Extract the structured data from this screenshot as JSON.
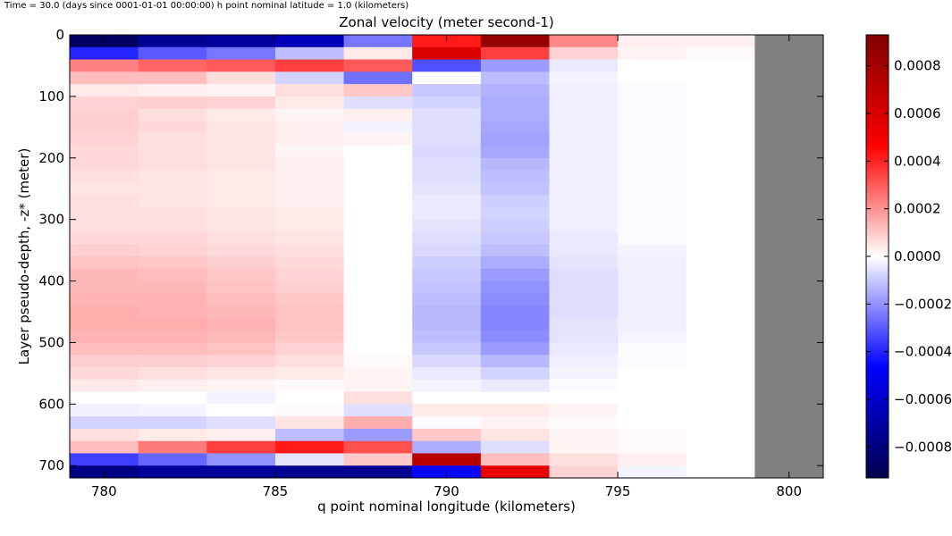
{
  "suptitle": "Time = 30.0 (days since 0001-01-01 00:00:00)   h point nominal latitude = 1.0 (kilometers)",
  "chart_data": {
    "type": "heatmap",
    "title": "Zonal velocity (meter  second-1)",
    "xlabel": "q point nominal longitude (kilometers)",
    "ylabel": "Layer pseudo-depth, -z* (meter)",
    "xlim": [
      779,
      801
    ],
    "ylim": [
      720,
      0
    ],
    "x_ticks": [
      780,
      785,
      790,
      795,
      800
    ],
    "y_ticks": [
      0,
      100,
      200,
      300,
      400,
      500,
      600,
      700
    ],
    "colormap": "seismic",
    "clim": [
      -0.00093,
      0.00093
    ],
    "colorbar_ticks": [
      0.0008,
      0.0006,
      0.0004,
      0.0002,
      0.0,
      -0.0002,
      -0.0004,
      -0.0006,
      -0.0008
    ],
    "colorbar_tick_labels": [
      "0.0008",
      "0.0006",
      "0.0004",
      "0.0002",
      "0.0000",
      "−0.0002",
      "−0.0004",
      "−0.0006",
      "−0.0008"
    ],
    "masked_color": "#808080",
    "x_edges": [
      779,
      781,
      783,
      785,
      787,
      789,
      791,
      793,
      795,
      797,
      799,
      801
    ],
    "y_edges": [
      0,
      20,
      40,
      60,
      80,
      100,
      120,
      140,
      160,
      180,
      200,
      220,
      240,
      260,
      280,
      300,
      320,
      340,
      360,
      380,
      400,
      420,
      440,
      460,
      480,
      500,
      520,
      540,
      560,
      580,
      600,
      620,
      640,
      660,
      680,
      700,
      720
    ],
    "values": [
      [
        -0.00088,
        -0.00075,
        -0.00072,
        -0.00065,
        -0.00025,
        0.00042,
        0.00085,
        0.00022,
        3e-05,
        3e-05,
        null
      ],
      [
        -0.0004,
        -0.0003,
        -0.00025,
        -0.00012,
        4e-05,
        0.0006,
        0.00035,
        8e-05,
        2e-05,
        1e-05,
        null
      ],
      [
        0.00023,
        0.00028,
        0.0003,
        0.00035,
        0.0003,
        -0.00032,
        -0.00018,
        -4e-05,
        0.0,
        0.0,
        null
      ],
      [
        0.00012,
        0.00012,
        6e-05,
        -8e-05,
        -0.00026,
        0.0,
        -0.00012,
        -2e-05,
        0.0,
        0.0,
        null
      ],
      [
        4e-05,
        3e-05,
        2e-05,
        6e-05,
        0.0001,
        -0.0001,
        -0.00014,
        -3e-05,
        -1e-05,
        0.0,
        null
      ],
      [
        8e-05,
        9e-05,
        8e-05,
        4e-05,
        -6e-05,
        -8e-05,
        -0.00015,
        -3e-05,
        -1e-05,
        0.0,
        null
      ],
      [
        9e-05,
        6e-05,
        4e-05,
        2e-05,
        3e-05,
        -6e-05,
        -0.00015,
        -3e-05,
        -1e-05,
        0.0,
        null
      ],
      [
        9e-05,
        7e-05,
        5e-05,
        3e-05,
        -2e-05,
        -6e-05,
        -0.00016,
        -3e-05,
        -1e-05,
        0.0,
        null
      ],
      [
        8e-05,
        6e-05,
        5e-05,
        3e-05,
        2e-05,
        -6e-05,
        -0.00017,
        -3e-05,
        -1e-05,
        0.0,
        null
      ],
      [
        7e-05,
        6e-05,
        5e-05,
        2e-05,
        0.0,
        -7e-05,
        -0.00016,
        -3e-05,
        -1e-05,
        0.0,
        null
      ],
      [
        7e-05,
        6e-05,
        5e-05,
        3e-05,
        0.0,
        -6e-05,
        -0.00013,
        -3e-05,
        -1e-05,
        0.0,
        null
      ],
      [
        6e-05,
        5e-05,
        4e-05,
        3e-05,
        0.0,
        -6e-05,
        -0.00012,
        -3e-05,
        -1e-05,
        0.0,
        null
      ],
      [
        5e-05,
        5e-05,
        4e-05,
        3e-05,
        0.0,
        -5e-05,
        -0.00011,
        -3e-05,
        -1e-05,
        0.0,
        null
      ],
      [
        6e-05,
        5e-05,
        4e-05,
        3e-05,
        0.0,
        -4e-05,
        -9e-05,
        -3e-05,
        -1e-05,
        0.0,
        null
      ],
      [
        6e-05,
        6e-05,
        5e-05,
        4e-05,
        0.0,
        -4e-05,
        -8e-05,
        -3e-05,
        -1e-05,
        0.0,
        null
      ],
      [
        6e-05,
        6e-05,
        5e-05,
        4e-05,
        0.0,
        -5e-05,
        -9e-05,
        -3e-05,
        -1e-05,
        0.0,
        null
      ],
      [
        7e-05,
        7e-05,
        6e-05,
        5e-05,
        0.0,
        -6e-05,
        -0.0001,
        -4e-05,
        -1e-05,
        0.0,
        null
      ],
      [
        9e-05,
        8e-05,
        7e-05,
        6e-05,
        0.0,
        -7e-05,
        -0.00012,
        -4e-05,
        -2e-05,
        0.0,
        null
      ],
      [
        0.00011,
        0.0001,
        9e-05,
        7e-05,
        0.0,
        -9e-05,
        -0.00015,
        -5e-05,
        -3e-05,
        0.0,
        null
      ],
      [
        0.00013,
        0.00012,
        0.0001,
        8e-05,
        0.0,
        -0.0001,
        -0.00018,
        -6e-05,
        -3e-05,
        0.0,
        null
      ],
      [
        0.00013,
        0.00013,
        0.00011,
        9e-05,
        0.0,
        -0.00011,
        -0.0002,
        -6e-05,
        -3e-05,
        0.0,
        null
      ],
      [
        0.00014,
        0.00014,
        0.00012,
        0.0001,
        0.0,
        -0.00012,
        -0.00021,
        -6e-05,
        -3e-05,
        0.0,
        null
      ],
      [
        0.00015,
        0.00014,
        0.00013,
        0.00011,
        0.0,
        -0.00013,
        -0.00022,
        -6e-05,
        -3e-05,
        0.0,
        null
      ],
      [
        0.00015,
        0.00015,
        0.00014,
        0.00011,
        0.0,
        -0.00013,
        -0.00022,
        -5e-05,
        -3e-05,
        0.0,
        null
      ],
      [
        0.00014,
        0.00014,
        0.00013,
        0.0001,
        0.0,
        -0.00012,
        -0.00021,
        -5e-05,
        -2e-05,
        0.0,
        null
      ],
      [
        0.00012,
        0.00012,
        0.00011,
        8e-05,
        0.0,
        -0.0001,
        -0.00018,
        -4e-05,
        -1e-05,
        0.0,
        null
      ],
      [
        9e-05,
        9e-05,
        8e-05,
        6e-05,
        1e-05,
        -7e-05,
        -0.00013,
        -3e-05,
        -1e-05,
        0.0,
        null
      ],
      [
        7e-05,
        6e-05,
        5e-05,
        4e-05,
        2e-05,
        -4e-05,
        -8e-05,
        -2e-05,
        0.0,
        0.0,
        null
      ],
      [
        4e-05,
        3e-05,
        2e-05,
        1e-05,
        2e-05,
        -2e-05,
        -4e-05,
        -1e-05,
        0.0,
        0.0,
        null
      ],
      [
        0.0,
        0.0,
        -2e-05,
        0.0,
        6e-05,
        0.0,
        0.0,
        0.0,
        0.0,
        0.0,
        null
      ],
      [
        -3e-05,
        -2e-05,
        0.0,
        1e-05,
        -6e-05,
        4e-05,
        4e-05,
        2e-05,
        0.0,
        0.0,
        null
      ],
      [
        -8e-05,
        -8e-05,
        -6e-05,
        5e-05,
        0.00015,
        -1e-05,
        2e-05,
        1e-05,
        0.0,
        0.0,
        null
      ],
      [
        6e-05,
        4e-05,
        3e-05,
        -0.00012,
        -0.00018,
        0.0001,
        5e-05,
        2e-05,
        1e-05,
        0.0,
        null
      ],
      [
        0.00012,
        0.00024,
        0.00035,
        0.00042,
        0.00032,
        -0.00015,
        -6e-05,
        2e-05,
        1e-05,
        0.0,
        null
      ],
      [
        -0.00035,
        -0.00028,
        -0.0002,
        -5e-05,
        0.0001,
        0.00072,
        0.00012,
        6e-05,
        3e-05,
        0.0,
        null
      ],
      [
        -0.00078,
        -0.00072,
        -0.00072,
        -0.00075,
        -0.00075,
        -0.00045,
        0.00055,
        8e-05,
        -2e-05,
        0.0,
        null
      ]
    ]
  }
}
